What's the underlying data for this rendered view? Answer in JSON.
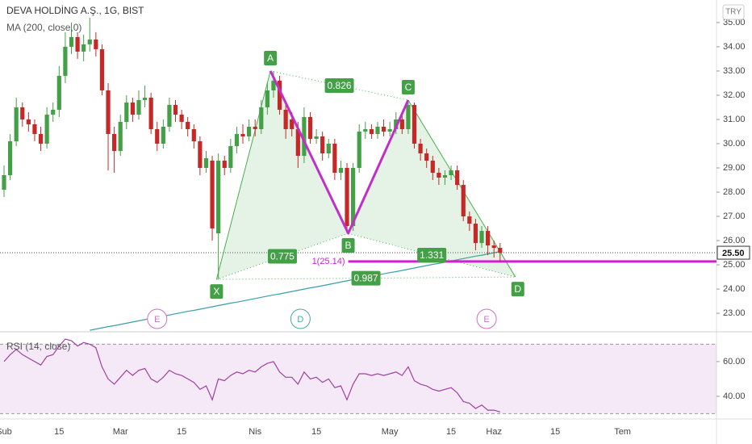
{
  "chart_data": [
    {
      "type": "candlestick",
      "title": "DEVA HOLDİNG A.Ş., 1G, BIST",
      "subtitle": "MA (200, close,0)",
      "currency": "TRY",
      "categories": [
        "Şub",
        null,
        null,
        null,
        null,
        null,
        null,
        null,
        null,
        "15",
        null,
        null,
        null,
        null,
        null,
        null,
        null,
        null,
        null,
        "Mar",
        null,
        null,
        null,
        null,
        null,
        null,
        null,
        null,
        null,
        "15",
        null,
        null,
        null,
        null,
        null,
        null,
        null,
        null,
        null,
        null,
        null,
        "Nis",
        null,
        null,
        null,
        null,
        null,
        null,
        null,
        null,
        null,
        "15",
        null,
        null,
        null,
        null,
        null,
        null,
        null,
        null,
        null,
        null,
        null,
        "May",
        null,
        null,
        null,
        null,
        null,
        null,
        null,
        null,
        null,
        "15",
        null,
        null,
        null,
        null,
        null,
        null,
        "Haz",
        null,
        null,
        null,
        null,
        null,
        null,
        null,
        null,
        null,
        "15",
        null,
        null,
        null,
        null,
        null,
        null,
        null,
        null,
        null,
        null,
        "Tem",
        null,
        null,
        null,
        null,
        null,
        null,
        null,
        null,
        null,
        null,
        null,
        null,
        null,
        null,
        null
      ],
      "open": [
        28.1,
        28.7,
        30.1,
        31.5,
        31.0,
        30.8,
        30.4,
        30.0,
        31.2,
        31.4,
        32.8,
        34.0,
        34.4,
        33.8,
        34.1,
        34.3,
        33.9,
        32.2,
        30.4,
        29.7,
        30.9,
        31.7,
        31.2,
        31.8,
        31.9,
        30.6,
        30.0,
        30.7,
        31.6,
        31.2,
        30.9,
        30.6,
        30.1,
        29.0,
        29.3,
        26.3,
        29.3,
        29.0,
        29.9,
        30.4,
        30.3,
        30.7,
        30.6,
        31.5,
        32.2,
        32.6,
        31.4,
        31.0,
        30.6,
        29.5,
        31.1,
        30.2,
        30.3,
        29.6,
        30.0,
        28.8,
        29.0,
        26.6,
        29.0,
        30.5,
        30.6,
        30.4,
        30.7,
        30.5,
        30.6,
        31.0,
        30.6,
        31.6,
        30.0,
        29.6,
        29.3,
        28.8,
        28.6,
        28.7,
        28.9,
        28.3,
        27.0,
        26.7,
        25.9,
        26.4,
        25.8,
        25.7,
        null,
        null,
        null,
        null,
        null,
        null,
        null,
        null,
        null,
        null,
        null,
        null,
        null,
        null,
        null,
        null,
        null,
        null,
        null,
        null,
        null,
        null,
        null,
        null,
        null,
        null,
        null,
        null,
        null,
        null,
        null,
        null,
        null,
        null,
        null
      ],
      "high": [
        29.1,
        30.4,
        31.9,
        31.7,
        31.3,
        31.0,
        30.7,
        31.5,
        31.7,
        33.2,
        34.6,
        35.0,
        34.6,
        34.5,
        35.2,
        34.6,
        34.1,
        32.5,
        30.7,
        31.2,
        32.0,
        31.9,
        32.2,
        32.4,
        32.1,
        30.9,
        31.0,
        31.9,
        31.8,
        31.4,
        31.1,
        30.8,
        30.3,
        29.7,
        29.5,
        29.6,
        29.5,
        30.2,
        30.7,
        30.8,
        31.0,
        31.0,
        31.8,
        32.5,
        33.0,
        32.8,
        31.7,
        31.3,
        30.9,
        31.5,
        31.3,
        30.6,
        30.5,
        30.2,
        30.2,
        29.3,
        29.2,
        29.2,
        30.8,
        30.9,
        30.8,
        30.9,
        31.0,
        30.9,
        31.3,
        31.2,
        31.8,
        31.7,
        30.2,
        29.8,
        29.5,
        29.0,
        28.9,
        29.1,
        29.1,
        28.5,
        27.2,
        26.9,
        26.6,
        26.6,
        26.0,
        25.9,
        null,
        null,
        null,
        null,
        null,
        null,
        null,
        null,
        null,
        null,
        null,
        null,
        null,
        null,
        null,
        null,
        null,
        null,
        null,
        null,
        null,
        null,
        null,
        null,
        null,
        null,
        null,
        null,
        null,
        null,
        null,
        null,
        null,
        null,
        null
      ],
      "low": [
        27.8,
        28.5,
        29.9,
        30.7,
        30.5,
        30.1,
        29.7,
        29.8,
        30.9,
        31.1,
        32.5,
        33.7,
        33.5,
        33.4,
        33.8,
        33.6,
        32.0,
        28.9,
        28.8,
        29.5,
        30.6,
        30.9,
        31.0,
        31.5,
        30.4,
        29.7,
        29.8,
        30.5,
        30.9,
        30.6,
        30.3,
        29.8,
        28.7,
        28.8,
        26.0,
        24.4,
        28.7,
        28.8,
        29.6,
        30.0,
        30.1,
        30.3,
        30.4,
        31.2,
        31.9,
        31.2,
        30.2,
        30.3,
        29.0,
        29.2,
        30.0,
        30.0,
        29.3,
        29.4,
        28.5,
        28.5,
        26.3,
        26.4,
        28.8,
        30.2,
        30.2,
        30.2,
        30.3,
        30.3,
        30.4,
        30.4,
        30.4,
        29.8,
        29.3,
        29.0,
        28.5,
        28.3,
        28.3,
        28.5,
        28.1,
        26.8,
        26.4,
        25.6,
        25.7,
        25.4,
        25.3,
        25.1,
        null,
        null,
        null,
        null,
        null,
        null,
        null,
        null,
        null,
        null,
        null,
        null,
        null,
        null,
        null,
        null,
        null,
        null,
        null,
        null,
        null,
        null,
        null,
        null,
        null,
        null,
        null,
        null,
        null,
        null,
        null,
        null,
        null,
        null,
        null
      ],
      "close": [
        28.7,
        30.1,
        31.5,
        31.0,
        30.8,
        30.4,
        30.0,
        31.2,
        31.4,
        32.8,
        34.0,
        34.4,
        33.8,
        34.1,
        34.3,
        33.9,
        32.2,
        30.4,
        29.7,
        30.9,
        31.7,
        31.2,
        31.8,
        31.9,
        30.6,
        30.0,
        30.7,
        31.6,
        31.2,
        30.9,
        30.6,
        30.1,
        29.0,
        29.4,
        26.5,
        29.3,
        29.0,
        29.9,
        30.4,
        30.3,
        30.7,
        30.6,
        31.5,
        32.2,
        32.6,
        31.4,
        30.6,
        30.6,
        29.5,
        31.1,
        30.2,
        30.3,
        29.6,
        30.0,
        28.8,
        29.0,
        26.6,
        29.0,
        30.5,
        30.6,
        30.4,
        30.7,
        30.5,
        30.6,
        31.0,
        30.6,
        31.6,
        30.0,
        29.6,
        29.3,
        28.8,
        28.6,
        28.7,
        28.9,
        28.3,
        27.0,
        26.7,
        25.9,
        26.4,
        25.8,
        25.7,
        25.5,
        null,
        null,
        null,
        null,
        null,
        null,
        null,
        null,
        null,
        null,
        null,
        null,
        null,
        null,
        null,
        null,
        null,
        null,
        null,
        null,
        null,
        null,
        null,
        null,
        null,
        null,
        null,
        null,
        null,
        null,
        null,
        null,
        null,
        null,
        null
      ],
      "last_price_label": "25.50",
      "up_color": "#43a047",
      "down_color": "#c62828",
      "series": [
        {
          "color": "#3b9fa8",
          "values": [
            null,
            null,
            null,
            null,
            null,
            null,
            null,
            null,
            null,
            null,
            null,
            null,
            null,
            null,
            22.3,
            22.35,
            22.4,
            22.45,
            22.49,
            22.54,
            22.59,
            22.64,
            22.69,
            22.74,
            22.79,
            22.83,
            22.88,
            22.93,
            22.98,
            23.03,
            23.08,
            23.12,
            23.17,
            23.22,
            23.27,
            23.32,
            23.37,
            23.42,
            23.46,
            23.51,
            23.56,
            23.61,
            23.66,
            23.71,
            23.76,
            23.8,
            23.85,
            23.9,
            23.95,
            24.0,
            24.05,
            24.09,
            24.14,
            24.19,
            24.24,
            24.29,
            24.34,
            24.39,
            24.43,
            24.48,
            24.53,
            24.58,
            24.63,
            24.68,
            24.72,
            24.77,
            24.82,
            24.87,
            24.92,
            24.97,
            25.02,
            25.06,
            25.11,
            25.16,
            25.21,
            25.26,
            25.31,
            25.36,
            25.4,
            25.45,
            25.5,
            25.55,
            null,
            null,
            null,
            null,
            null,
            null,
            null,
            null,
            null,
            null,
            null,
            null,
            null,
            null,
            null,
            null,
            null,
            null,
            null,
            null,
            null,
            null,
            null,
            null,
            null,
            null,
            null,
            null,
            null,
            null,
            null,
            null,
            null,
            null,
            null
          ]
        }
      ],
      "ylim": [
        22.27,
        35.93
      ],
      "yticks": [
        {
          "value": 23,
          "label": "23.00"
        },
        {
          "value": 24,
          "label": "24.00"
        },
        {
          "value": 25,
          "label": "25.00"
        },
        {
          "value": 26,
          "label": "26.00"
        },
        {
          "value": 27,
          "label": "27.00"
        },
        {
          "value": 28,
          "label": "28.00"
        },
        {
          "value": 29,
          "label": "29.00"
        },
        {
          "value": 30,
          "label": "30.00"
        },
        {
          "value": 31,
          "label": "31.00"
        },
        {
          "value": 32,
          "label": "32.00"
        },
        {
          "value": 33,
          "label": "33.00"
        },
        {
          "value": 34,
          "label": "34.00"
        },
        {
          "value": 35,
          "label": "35.00"
        }
      ],
      "pattern": {
        "fill": "#4caf50",
        "leg_color": "#c030c8",
        "label_color": "#43a047",
        "points": [
          {
            "label": "X",
            "index": 34.7,
            "price": 24.4
          },
          {
            "label": "A",
            "index": 43.5,
            "price": 33.0
          },
          {
            "label": "B",
            "index": 56.2,
            "price": 26.3
          },
          {
            "label": "C",
            "index": 66,
            "price": 31.8
          },
          {
            "label": "D",
            "index": 83.5,
            "price": 24.5
          }
        ],
        "ratios": [
          {
            "from": "A",
            "to": "C",
            "label": "0.826"
          },
          {
            "from": "X",
            "to": "B",
            "label": "0.775"
          },
          {
            "from": "B",
            "to": "D",
            "label": "1.331"
          },
          {
            "from": "X",
            "to": "D",
            "label": "0.987"
          }
        ]
      },
      "level": {
        "value": 25.14,
        "label": "1(25.14)",
        "start_index": 56.2,
        "color": "#d020d0"
      },
      "markers": [
        {
          "label": "E",
          "index": 25,
          "color": "#d070c0"
        },
        {
          "label": "D",
          "index": 48.4,
          "color": "#4aa8a0"
        },
        {
          "label": "E",
          "index": 78.8,
          "color": "#d070c0"
        }
      ]
    },
    {
      "type": "line",
      "title": "RSI (14, close)",
      "color": "#a040a0",
      "values": [
        60,
        64,
        67,
        64,
        62,
        60,
        58,
        63,
        64,
        69,
        73,
        72,
        69,
        71,
        70,
        68,
        57,
        50,
        47,
        51,
        55,
        52,
        55,
        56,
        50,
        48,
        51,
        55,
        53,
        52,
        50,
        48,
        44,
        46,
        38,
        50,
        49,
        52,
        54,
        53,
        55,
        54,
        57,
        59,
        60,
        54,
        51,
        51,
        47,
        54,
        50,
        51,
        48,
        50,
        45,
        46,
        38,
        47,
        53,
        53,
        52,
        53,
        52,
        53,
        54,
        52,
        57,
        49,
        47,
        46,
        44,
        43,
        44,
        45,
        42,
        37,
        36,
        33,
        35,
        32,
        32,
        31,
        null,
        null,
        null,
        null,
        null,
        null,
        null,
        null,
        null,
        null,
        null,
        null,
        null,
        null,
        null,
        null,
        null,
        null,
        null,
        null,
        null,
        null,
        null,
        null,
        null,
        null,
        null,
        null,
        null,
        null,
        null,
        null,
        null,
        null,
        null
      ],
      "bands": [
        30,
        70
      ],
      "ylim": [
        27.4,
        76.7
      ],
      "yticks": [
        {
          "value": 40,
          "label": "40.00"
        },
        {
          "value": 60,
          "label": "60.00"
        }
      ]
    }
  ]
}
